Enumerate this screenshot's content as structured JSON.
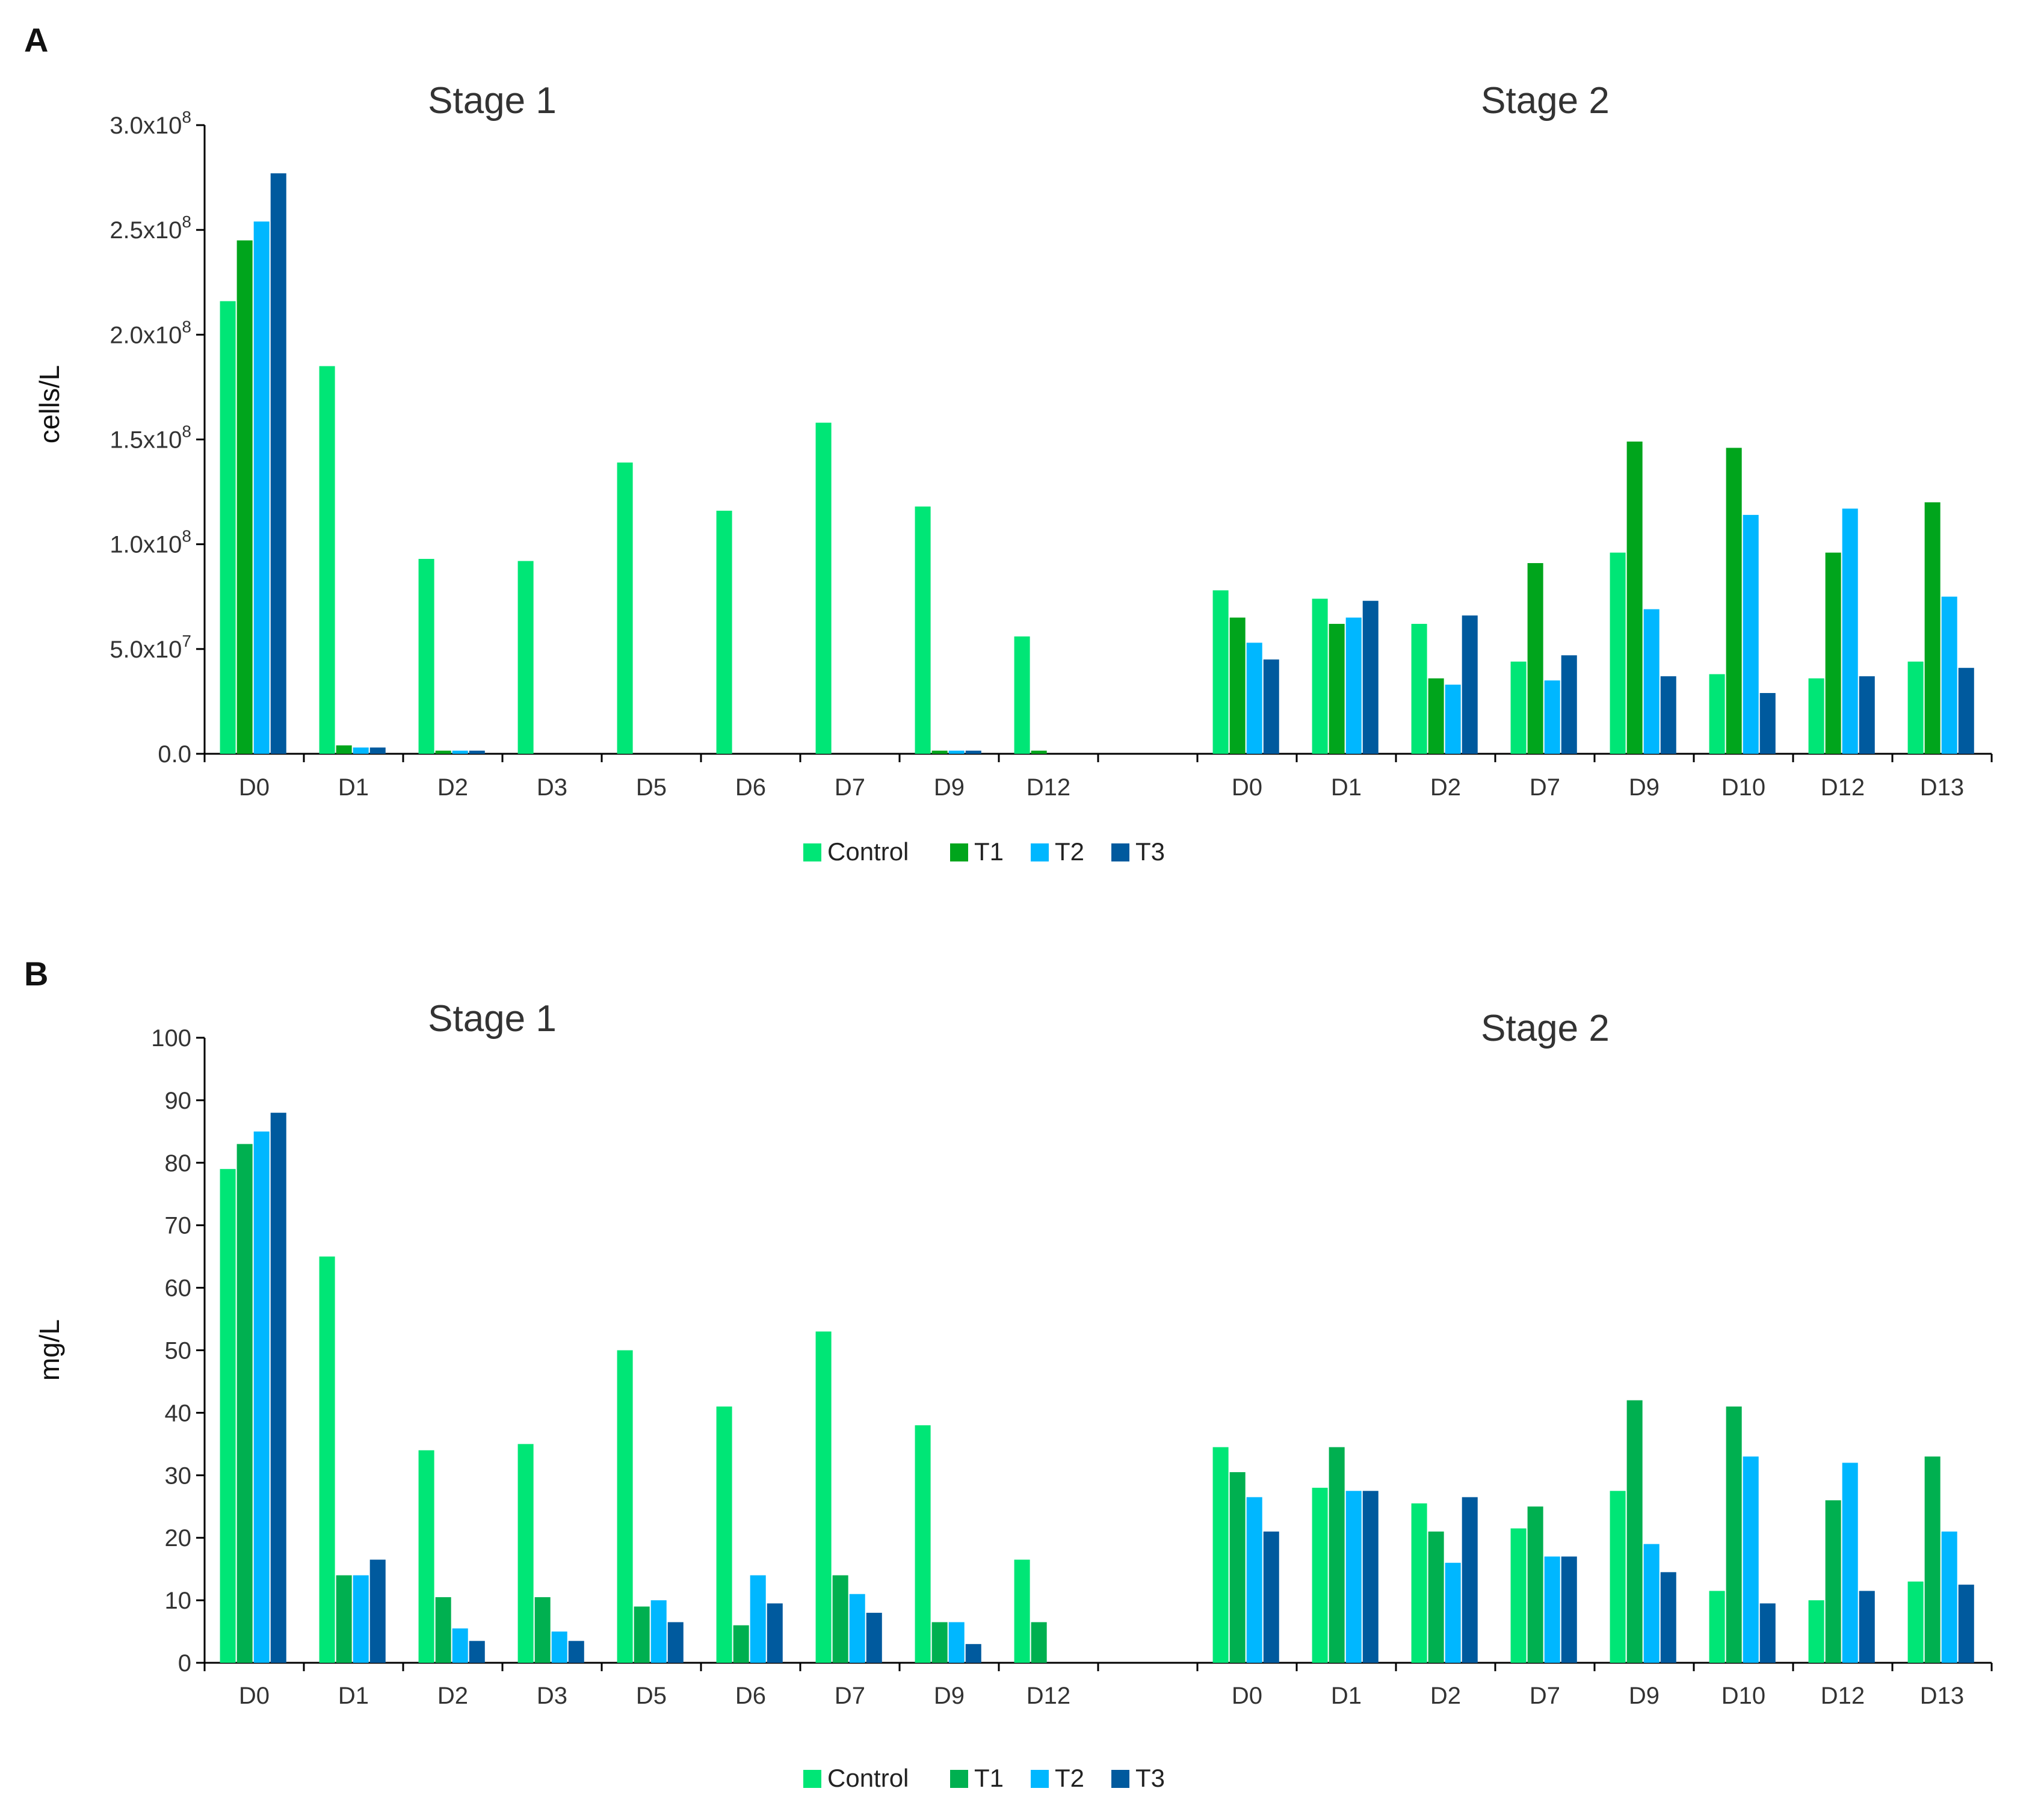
{
  "colors": {
    "Control": "#00E676",
    "T1_A": "#00A51C",
    "T1_B": "#00B050",
    "T2": "#00B7FF",
    "T3": "#005A9E"
  },
  "chart_data": [
    {
      "id": "A",
      "type": "bar",
      "panel_label": "A",
      "ylabel": "cells/L",
      "ylim": [
        0,
        300000000
      ],
      "yticks": [
        {
          "value": 0,
          "mantissa": "0.0",
          "exp": ""
        },
        {
          "value": 50000000,
          "mantissa": "5.0x10",
          "exp": "7"
        },
        {
          "value": 100000000,
          "mantissa": "1.0x10",
          "exp": "8"
        },
        {
          "value": 150000000,
          "mantissa": "1.5x10",
          "exp": "8"
        },
        {
          "value": 200000000,
          "mantissa": "2.0x10",
          "exp": "8"
        },
        {
          "value": 250000000,
          "mantissa": "2.5x10",
          "exp": "8"
        },
        {
          "value": 300000000,
          "mantissa": "3.0x10",
          "exp": "8"
        }
      ],
      "stages": [
        {
          "title": "Stage 1",
          "categories": [
            "D0",
            "D1",
            "D2",
            "D3",
            "D5",
            "D6",
            "D7",
            "D9",
            "D12"
          ],
          "series": [
            {
              "name": "Control",
              "values": [
                216000000,
                185000000,
                93000000,
                92000000,
                139000000,
                116000000,
                158000000,
                118000000,
                56000000
              ]
            },
            {
              "name": "T1",
              "values": [
                245000000,
                4000000,
                1500000,
                0,
                0,
                0,
                0,
                1500000,
                1500000
              ]
            },
            {
              "name": "T2",
              "values": [
                254000000,
                3000000,
                1500000,
                0,
                0,
                0,
                0,
                1500000,
                0
              ]
            },
            {
              "name": "T3",
              "values": [
                277000000,
                3000000,
                1500000,
                0,
                0,
                0,
                0,
                1500000,
                0
              ]
            }
          ]
        },
        {
          "title": "Stage 2",
          "categories": [
            "D0",
            "D1",
            "D2",
            "D7",
            "D9",
            "D10",
            "D12",
            "D13"
          ],
          "series": [
            {
              "name": "Control",
              "values": [
                78000000,
                74000000,
                62000000,
                44000000,
                96000000,
                38000000,
                36000000,
                44000000
              ]
            },
            {
              "name": "T1",
              "values": [
                65000000,
                62000000,
                36000000,
                91000000,
                149000000,
                146000000,
                96000000,
                120000000
              ]
            },
            {
              "name": "T2",
              "values": [
                53000000,
                65000000,
                33000000,
                35000000,
                69000000,
                114000000,
                117000000,
                75000000
              ]
            },
            {
              "name": "T3",
              "values": [
                45000000,
                73000000,
                66000000,
                47000000,
                37000000,
                29000000,
                37000000,
                41000000
              ]
            }
          ]
        }
      ],
      "legend": [
        "Control",
        "T1",
        "T2",
        "T3"
      ]
    },
    {
      "id": "B",
      "type": "bar",
      "panel_label": "B",
      "ylabel": "mg/L",
      "ylim": [
        0,
        100
      ],
      "yticks": [
        {
          "value": 0,
          "mantissa": "0",
          "exp": ""
        },
        {
          "value": 10,
          "mantissa": "10",
          "exp": ""
        },
        {
          "value": 20,
          "mantissa": "20",
          "exp": ""
        },
        {
          "value": 30,
          "mantissa": "30",
          "exp": ""
        },
        {
          "value": 40,
          "mantissa": "40",
          "exp": ""
        },
        {
          "value": 50,
          "mantissa": "50",
          "exp": ""
        },
        {
          "value": 60,
          "mantissa": "60",
          "exp": ""
        },
        {
          "value": 70,
          "mantissa": "70",
          "exp": ""
        },
        {
          "value": 80,
          "mantissa": "80",
          "exp": ""
        },
        {
          "value": 90,
          "mantissa": "90",
          "exp": ""
        },
        {
          "value": 100,
          "mantissa": "100",
          "exp": ""
        }
      ],
      "stages": [
        {
          "title": "Stage 1",
          "categories": [
            "D0",
            "D1",
            "D2",
            "D3",
            "D5",
            "D6",
            "D7",
            "D9",
            "D12"
          ],
          "series": [
            {
              "name": "Control",
              "values": [
                79,
                65,
                34,
                35,
                50,
                41,
                53,
                38,
                16.5
              ]
            },
            {
              "name": "T1",
              "values": [
                83,
                14,
                10.5,
                10.5,
                9,
                6,
                14,
                6.5,
                6.5
              ]
            },
            {
              "name": "T2",
              "values": [
                85,
                14,
                5.5,
                5,
                10,
                14,
                11,
                6.5,
                0
              ]
            },
            {
              "name": "T3",
              "values": [
                88,
                16.5,
                3.5,
                3.5,
                6.5,
                9.5,
                8,
                3,
                0
              ]
            }
          ]
        },
        {
          "title": "Stage 2",
          "categories": [
            "D0",
            "D1",
            "D2",
            "D7",
            "D9",
            "D10",
            "D12",
            "D13"
          ],
          "series": [
            {
              "name": "Control",
              "values": [
                34.5,
                28,
                25.5,
                21.5,
                27.5,
                11.5,
                10,
                13
              ]
            },
            {
              "name": "T1",
              "values": [
                30.5,
                34.5,
                21,
                25,
                42,
                41,
                26,
                33
              ]
            },
            {
              "name": "T2",
              "values": [
                26.5,
                27.5,
                16,
                17,
                19,
                33,
                32,
                21
              ]
            },
            {
              "name": "T3",
              "values": [
                21,
                27.5,
                26.5,
                17,
                14.5,
                9.5,
                11.5,
                12.5
              ]
            }
          ]
        }
      ],
      "legend": [
        "Control",
        "T1",
        "T2",
        "T3"
      ]
    }
  ]
}
